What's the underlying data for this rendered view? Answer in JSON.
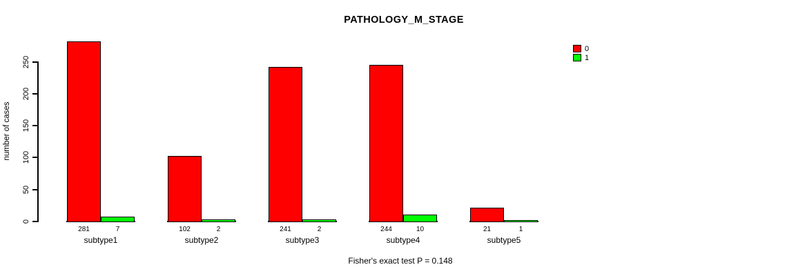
{
  "chart_data": {
    "type": "bar",
    "title": "PATHOLOGY_M_STAGE",
    "xlabel": "",
    "ylabel": "number of cases",
    "footnote": "Fisher's exact test P = 0.148",
    "categories": [
      "subtype1",
      "subtype2",
      "subtype3",
      "subtype4",
      "subtype5"
    ],
    "series": [
      {
        "name": "0",
        "color": "#ff0000",
        "values": [
          281,
          102,
          241,
          244,
          21
        ]
      },
      {
        "name": "1",
        "color": "#00ff00",
        "values": [
          7,
          2,
          2,
          10,
          1
        ]
      }
    ],
    "yticks": [
      0,
      50,
      100,
      150,
      200,
      250
    ],
    "ylim": [
      0,
      281
    ],
    "grid": false,
    "legend_position": "right",
    "bar_labels_shown": true,
    "colors": {
      "axis": "#000000",
      "text": "#000000",
      "background": "#ffffff"
    }
  }
}
